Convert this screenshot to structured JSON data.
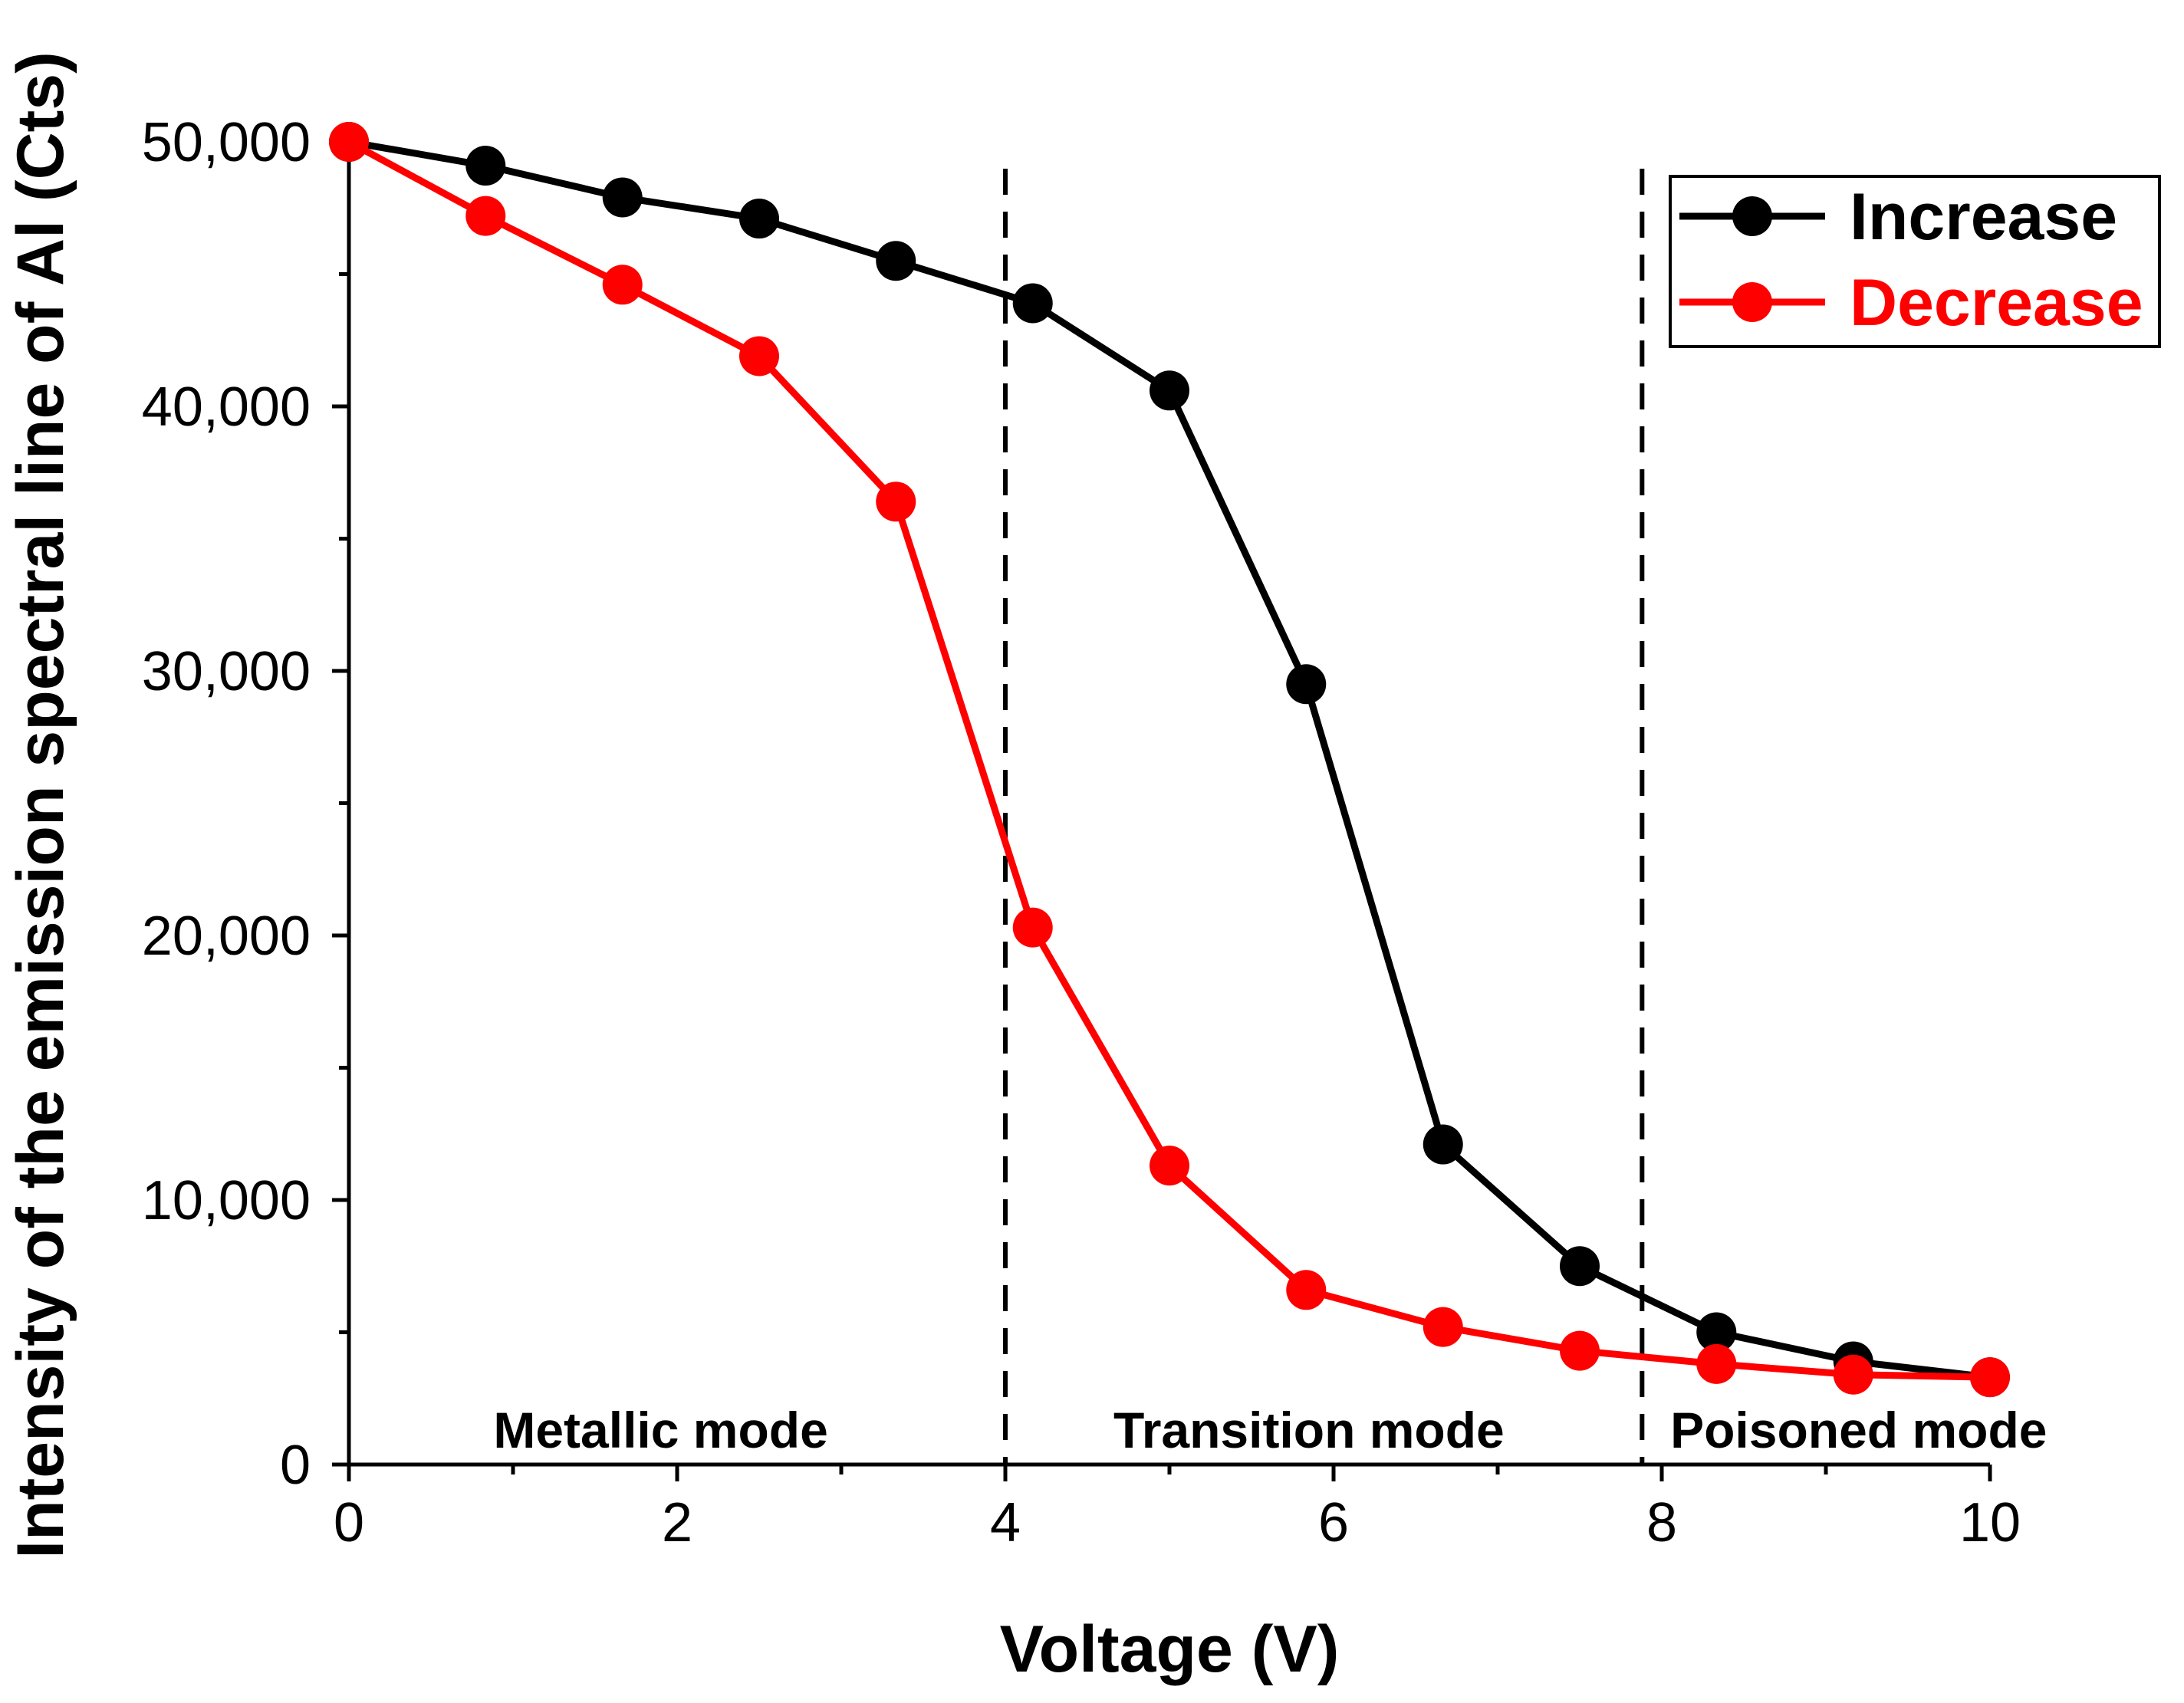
{
  "chart_data": {
    "type": "line",
    "title": "",
    "xlabel": "Voltage (V)",
    "ylabel": "Intensity of the emission spectral line of Al (Cts)",
    "xlim": [
      0,
      10
    ],
    "ylim": [
      0,
      50000
    ],
    "x_ticks": [
      0,
      2,
      4,
      6,
      8,
      10
    ],
    "x_tick_labels": [
      "0",
      "2",
      "4",
      "6",
      "8",
      "10"
    ],
    "y_ticks": [
      0,
      10000,
      20000,
      30000,
      40000,
      50000
    ],
    "y_tick_labels": [
      "0",
      "10,000",
      "20,000",
      "30,000",
      "40,000",
      "50,000"
    ],
    "grid": false,
    "legend_position": "top-right",
    "series": [
      {
        "name": "Increase",
        "color": "#000000",
        "x": [
          0,
          0.833,
          1.667,
          2.5,
          3.333,
          4.167,
          5.0,
          5.833,
          6.667,
          7.5,
          8.333,
          9.167,
          10.0
        ],
        "y": [
          50000,
          49100,
          47900,
          47100,
          45500,
          43900,
          40600,
          29500,
          12100,
          7500,
          5000,
          3900,
          3300
        ]
      },
      {
        "name": "Decrease",
        "color": "#ff0000",
        "x": [
          0,
          0.833,
          1.667,
          2.5,
          3.333,
          4.167,
          5.0,
          5.833,
          6.667,
          7.5,
          8.333,
          9.167,
          10.0
        ],
        "y": [
          50000,
          47200,
          44600,
          41900,
          36400,
          20300,
          11300,
          6600,
          5200,
          4300,
          3800,
          3400,
          3300
        ]
      }
    ],
    "vlines": [
      4.0,
      7.88
    ],
    "regions": [
      {
        "label": "Metallic mode",
        "x": 1.9
      },
      {
        "label": "Transition mode",
        "x": 5.85
      },
      {
        "label": "Poisoned mode",
        "x": 9.2
      }
    ]
  }
}
